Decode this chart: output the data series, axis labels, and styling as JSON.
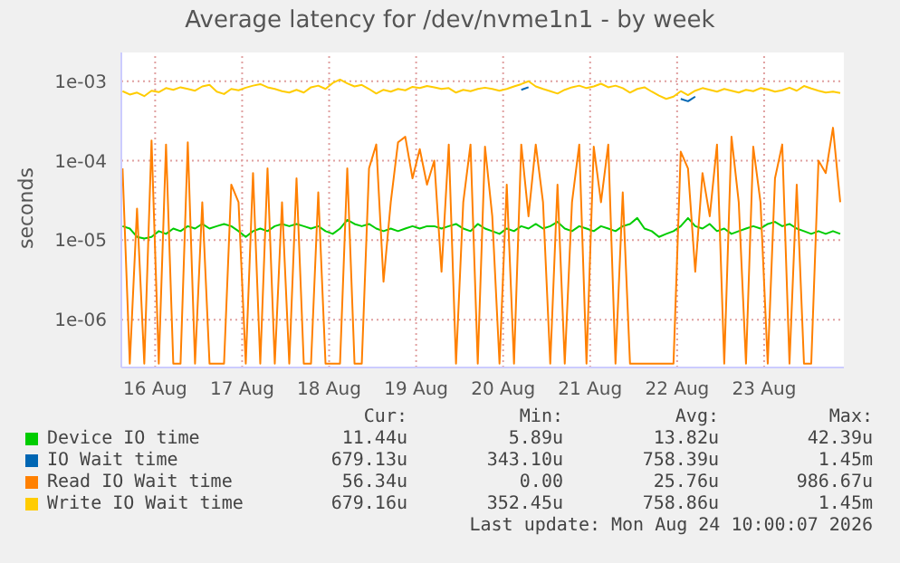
{
  "chart_data": {
    "type": "line",
    "title": "Average latency for /dev/nvme1n1 - by week",
    "ylabel": "seconds",
    "log": "y",
    "grid": true,
    "legend": "bottom",
    "marker": "none",
    "line_style": "solid",
    "xlim": [
      "2026-08-16T02:40",
      "2026-08-24T10:00"
    ],
    "xticks": [
      {
        "value": "2026-08-16T12:00",
        "label": "16 Aug"
      },
      {
        "value": "2026-08-17T12:00",
        "label": "17 Aug"
      },
      {
        "value": "2026-08-18T12:00",
        "label": "18 Aug"
      },
      {
        "value": "2026-08-19T12:00",
        "label": "19 Aug"
      },
      {
        "value": "2026-08-20T12:00",
        "label": "20 Aug"
      },
      {
        "value": "2026-08-21T12:00",
        "label": "21 Aug"
      },
      {
        "value": "2026-08-22T12:00",
        "label": "22 Aug"
      },
      {
        "value": "2026-08-23T12:00",
        "label": "23 Aug"
      }
    ],
    "ylim": [
      2.5e-07,
      0.0023
    ],
    "yticks": [
      {
        "value": 1e-06,
        "label": "1e-06"
      },
      {
        "value": 1e-05,
        "label": "1e-05"
      },
      {
        "value": 0.0001,
        "label": "1e-04"
      },
      {
        "value": 0.001,
        "label": "1e-03"
      }
    ],
    "x": [
      "2026-08-16T03:00",
      "2026-08-16T05:00",
      "2026-08-16T07:00",
      "2026-08-16T09:00",
      "2026-08-16T11:00",
      "2026-08-16T13:00",
      "2026-08-16T15:00",
      "2026-08-16T17:00",
      "2026-08-16T19:00",
      "2026-08-16T21:00",
      "2026-08-16T23:00",
      "2026-08-17T01:00",
      "2026-08-17T03:00",
      "2026-08-17T05:00",
      "2026-08-17T07:00",
      "2026-08-17T09:00",
      "2026-08-17T11:00",
      "2026-08-17T13:00",
      "2026-08-17T15:00",
      "2026-08-17T17:00",
      "2026-08-17T19:00",
      "2026-08-17T21:00",
      "2026-08-17T23:00",
      "2026-08-18T01:00",
      "2026-08-18T03:00",
      "2026-08-18T05:00",
      "2026-08-18T07:00",
      "2026-08-18T09:00",
      "2026-08-18T11:00",
      "2026-08-18T13:00",
      "2026-08-18T15:00",
      "2026-08-18T17:00",
      "2026-08-18T19:00",
      "2026-08-18T21:00",
      "2026-08-18T23:00",
      "2026-08-19T01:00",
      "2026-08-19T03:00",
      "2026-08-19T05:00",
      "2026-08-19T07:00",
      "2026-08-19T09:00",
      "2026-08-19T11:00",
      "2026-08-19T13:00",
      "2026-08-19T15:00",
      "2026-08-19T17:00",
      "2026-08-19T19:00",
      "2026-08-19T21:00",
      "2026-08-19T23:00",
      "2026-08-20T01:00",
      "2026-08-20T03:00",
      "2026-08-20T05:00",
      "2026-08-20T07:00",
      "2026-08-20T09:00",
      "2026-08-20T11:00",
      "2026-08-20T13:00",
      "2026-08-20T15:00",
      "2026-08-20T17:00",
      "2026-08-20T19:00",
      "2026-08-20T21:00",
      "2026-08-20T23:00",
      "2026-08-21T01:00",
      "2026-08-21T03:00",
      "2026-08-21T05:00",
      "2026-08-21T07:00",
      "2026-08-21T09:00",
      "2026-08-21T11:00",
      "2026-08-21T13:00",
      "2026-08-21T15:00",
      "2026-08-21T17:00",
      "2026-08-21T19:00",
      "2026-08-21T21:00",
      "2026-08-21T23:00",
      "2026-08-22T01:00",
      "2026-08-22T03:00",
      "2026-08-22T05:00",
      "2026-08-22T07:00",
      "2026-08-22T09:00",
      "2026-08-22T11:00",
      "2026-08-22T13:00",
      "2026-08-22T15:00",
      "2026-08-22T17:00",
      "2026-08-22T19:00",
      "2026-08-22T21:00",
      "2026-08-22T23:00",
      "2026-08-23T01:00",
      "2026-08-23T03:00",
      "2026-08-23T05:00",
      "2026-08-23T07:00",
      "2026-08-23T09:00",
      "2026-08-23T11:00",
      "2026-08-23T13:00",
      "2026-08-23T15:00",
      "2026-08-23T17:00",
      "2026-08-23T19:00",
      "2026-08-23T21:00",
      "2026-08-23T23:00",
      "2026-08-24T01:00",
      "2026-08-24T03:00",
      "2026-08-24T05:00",
      "2026-08-24T07:00",
      "2026-08-24T09:00"
    ],
    "series": [
      {
        "name": "Device IO time",
        "color": "#00cc00",
        "values": [
          1.5e-05,
          1.4e-05,
          1.1e-05,
          1.05e-05,
          1.1e-05,
          1.3e-05,
          1.2e-05,
          1.4e-05,
          1.3e-05,
          1.5e-05,
          1.4e-05,
          1.6e-05,
          1.4e-05,
          1.5e-05,
          1.6e-05,
          1.5e-05,
          1.3e-05,
          1.1e-05,
          1.3e-05,
          1.4e-05,
          1.3e-05,
          1.5e-05,
          1.6e-05,
          1.5e-05,
          1.6e-05,
          1.5e-05,
          1.4e-05,
          1.5e-05,
          1.3e-05,
          1.2e-05,
          1.4e-05,
          1.8e-05,
          1.6e-05,
          1.5e-05,
          1.6e-05,
          1.4e-05,
          1.3e-05,
          1.4e-05,
          1.3e-05,
          1.4e-05,
          1.5e-05,
          1.4e-05,
          1.5e-05,
          1.5e-05,
          1.4e-05,
          1.5e-05,
          1.6e-05,
          1.4e-05,
          1.3e-05,
          1.6e-05,
          1.4e-05,
          1.3e-05,
          1.2e-05,
          1.4e-05,
          1.3e-05,
          1.5e-05,
          1.4e-05,
          1.6e-05,
          1.4e-05,
          1.5e-05,
          1.7e-05,
          1.4e-05,
          1.3e-05,
          1.5e-05,
          1.4e-05,
          1.3e-05,
          1.5e-05,
          1.4e-05,
          1.3e-05,
          1.5e-05,
          1.6e-05,
          1.9e-05,
          1.4e-05,
          1.3e-05,
          1.1e-05,
          1.2e-05,
          1.3e-05,
          1.5e-05,
          1.9e-05,
          1.5e-05,
          1.4e-05,
          1.6e-05,
          1.3e-05,
          1.4e-05,
          1.2e-05,
          1.3e-05,
          1.4e-05,
          1.5e-05,
          1.4e-05,
          1.6e-05,
          1.7e-05,
          1.5e-05,
          1.6e-05,
          1.4e-05,
          1.3e-05,
          1.2e-05,
          1.3e-05,
          1.2e-05,
          1.3e-05,
          1.2e-05
        ]
      },
      {
        "name": "IO Wait time",
        "color": "#0066b3",
        "values": [
          null,
          null,
          null,
          null,
          null,
          null,
          null,
          null,
          null,
          null,
          null,
          null,
          null,
          null,
          null,
          null,
          null,
          null,
          null,
          null,
          null,
          null,
          null,
          null,
          null,
          null,
          null,
          null,
          null,
          null,
          null,
          null,
          null,
          null,
          null,
          null,
          null,
          null,
          null,
          null,
          null,
          null,
          null,
          null,
          null,
          null,
          null,
          null,
          null,
          null,
          null,
          null,
          null,
          null,
          null,
          0.00078,
          0.00084,
          null,
          null,
          null,
          null,
          null,
          null,
          null,
          null,
          null,
          null,
          null,
          null,
          null,
          null,
          null,
          null,
          null,
          null,
          null,
          null,
          0.0006,
          0.00056,
          0.00064,
          null,
          null,
          null,
          null,
          null,
          null,
          null,
          null,
          null,
          null,
          null,
          null,
          null,
          null,
          null,
          null,
          null,
          null,
          null,
          null
        ]
      },
      {
        "name": "Read IO Wait time",
        "color": "#ff8000",
        "values": [
          8e-05,
          2.8e-07,
          2.5e-05,
          2.8e-07,
          0.00018,
          2.8e-07,
          0.00016,
          2.8e-07,
          2.8e-07,
          0.00017,
          2.8e-07,
          3e-05,
          2.8e-07,
          2.8e-07,
          2.8e-07,
          5e-05,
          3e-05,
          2.8e-07,
          7e-05,
          2.8e-07,
          8e-05,
          2.8e-07,
          3e-05,
          2.8e-07,
          6e-05,
          2.8e-07,
          2.8e-07,
          4e-05,
          2.8e-07,
          2.8e-07,
          2.8e-07,
          8e-05,
          2.8e-07,
          2.8e-07,
          8e-05,
          0.00016,
          3e-06,
          3e-05,
          0.00017,
          0.0002,
          6e-05,
          0.00014,
          5e-05,
          0.0001,
          4e-06,
          0.00016,
          2.8e-07,
          3e-05,
          0.00016,
          2.8e-07,
          0.00015,
          2e-05,
          2.8e-07,
          5e-05,
          2.8e-07,
          0.00016,
          2e-05,
          0.00016,
          3e-05,
          2.8e-07,
          5e-05,
          2.8e-07,
          3e-05,
          0.00016,
          2.8e-07,
          0.00015,
          3e-05,
          0.00016,
          2.8e-07,
          4e-05,
          2.8e-07,
          2.8e-07,
          2.8e-07,
          2.8e-07,
          2.8e-07,
          2.8e-07,
          2.8e-07,
          0.00013,
          8e-05,
          4e-06,
          7e-05,
          2e-05,
          0.00016,
          2.8e-07,
          0.0002,
          3e-05,
          2.8e-07,
          0.00015,
          3e-05,
          2.8e-07,
          6e-05,
          0.00016,
          2.8e-07,
          5e-05,
          2.8e-07,
          2.8e-07,
          0.0001,
          7e-05,
          0.00026,
          3e-05
        ]
      },
      {
        "name": "Write IO Wait time",
        "color": "#ffcc00",
        "values": [
          0.00075,
          0.00068,
          0.00072,
          0.00065,
          0.00076,
          0.00073,
          0.00082,
          0.00078,
          0.00084,
          0.0008,
          0.00076,
          0.00086,
          0.0009,
          0.00074,
          0.00069,
          0.0008,
          0.00077,
          0.00083,
          0.00088,
          0.00092,
          0.00084,
          0.0008,
          0.00075,
          0.00072,
          0.00078,
          0.00072,
          0.00084,
          0.00088,
          0.0008,
          0.00095,
          0.00105,
          0.00094,
          0.00086,
          0.0009,
          0.0008,
          0.0007,
          0.00078,
          0.00074,
          0.0008,
          0.00077,
          0.00085,
          0.00082,
          0.00087,
          0.00084,
          0.0008,
          0.00082,
          0.00072,
          0.00078,
          0.00075,
          0.0008,
          0.00083,
          0.0008,
          0.00076,
          0.0008,
          0.00086,
          0.00092,
          0.001,
          0.00086,
          0.0008,
          0.00075,
          0.0007,
          0.00078,
          0.00084,
          0.00088,
          0.00082,
          0.00086,
          0.00093,
          0.00084,
          0.00088,
          0.00082,
          0.00072,
          0.0008,
          0.00084,
          0.00074,
          0.00066,
          0.0006,
          0.00064,
          0.00075,
          0.00067,
          0.00076,
          0.00082,
          0.00078,
          0.00074,
          0.0008,
          0.00076,
          0.00072,
          0.00078,
          0.00075,
          0.00082,
          0.00079,
          0.00074,
          0.00077,
          0.00083,
          0.00076,
          0.00087,
          0.00081,
          0.00076,
          0.00072,
          0.00074,
          0.00071
        ]
      }
    ],
    "annotations": [
      "Cur:",
      "Min:",
      "Avg:",
      "Max:",
      "11.44u",
      "5.89u",
      "13.82u",
      "42.39u",
      "679.13u",
      "343.10u",
      "758.39u",
      "1.45m",
      "56.34u",
      "0.00",
      "25.76u",
      "986.67u",
      "679.16u",
      "352.45u",
      "758.86u",
      "1.45m",
      "Last update: Mon Aug 24 10:00:07 2026"
    ]
  }
}
